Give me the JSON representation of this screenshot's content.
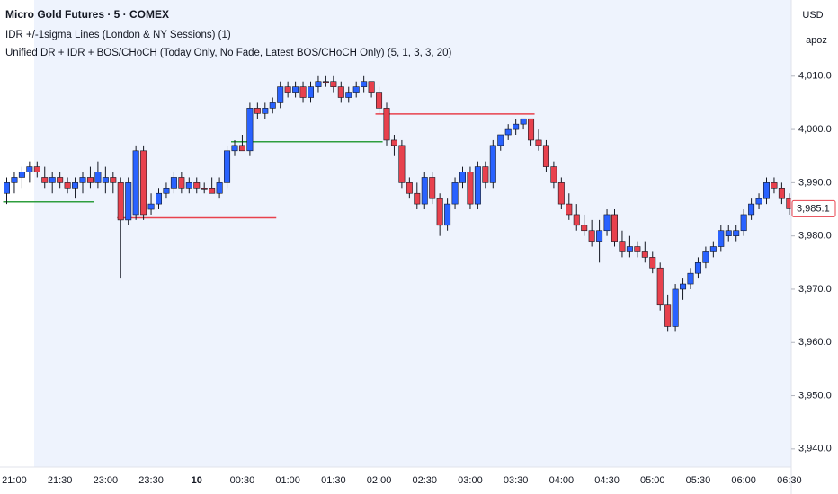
{
  "chart_data": {
    "type": "candlestick",
    "title": "Micro Gold Futures · 5 · COMEX",
    "indicators": [
      "IDR +/-1sigma Lines (London & NY Sessions) (1)",
      "Unified DR + IDR + BOS/CHoCH (Today Only, No Fade, Latest BOS/CHoCH Only) (5, 1, 3, 3, 20)"
    ],
    "currency": "USD",
    "scale_label": "apoz",
    "up_color": "#2962ff",
    "down_color": "#e8414d",
    "categories": [
      null,
      "21:00",
      null,
      null,
      null,
      null,
      null,
      "21:30",
      null,
      null,
      null,
      null,
      null,
      "23:00",
      null,
      null,
      null,
      null,
      null,
      "23:30",
      null,
      null,
      null,
      null,
      null,
      "10",
      null,
      null,
      null,
      null,
      null,
      "00:30",
      null,
      null,
      null,
      null,
      null,
      "01:00",
      null,
      null,
      null,
      null,
      null,
      "01:30",
      null,
      null,
      null,
      null,
      null,
      "02:00",
      null,
      null,
      null,
      null,
      null,
      "02:30",
      null,
      null,
      null,
      null,
      null,
      "03:00",
      null,
      null,
      null,
      null,
      null,
      "03:30",
      null,
      null,
      null,
      null,
      null,
      "04:00",
      null,
      null,
      null,
      null,
      null,
      "04:30",
      null,
      null,
      null,
      null,
      null,
      "05:00",
      null,
      null,
      null,
      null,
      null,
      "05:30",
      null,
      null,
      null,
      null,
      null,
      "06:00",
      null,
      null,
      null,
      null,
      null,
      "06:30"
    ],
    "open": [
      3988,
      3990,
      3991,
      3992,
      3993,
      3991,
      3990,
      3991,
      3990,
      3989,
      3990,
      3991,
      3990,
      3990,
      3991,
      3990,
      3983,
      3984,
      3996,
      3985,
      3986,
      3988,
      3989,
      3991,
      3989,
      3990,
      3989,
      3989,
      3988,
      3990,
      3996,
      3997,
      3996,
      4004,
      4003,
      4004,
      4005,
      4008,
      4007,
      4008,
      4006,
      4008,
      4009,
      4009,
      4008,
      4006,
      4007,
      4008,
      4009,
      4007,
      4004,
      3998,
      3997,
      3990,
      3988,
      3986,
      3991,
      3987,
      3982,
      3986,
      3990,
      3992,
      3986,
      3993,
      3990,
      3997,
      3999,
      4000,
      4001,
      4002,
      3998,
      3997,
      3993,
      3990,
      3986,
      3984,
      3982,
      3981,
      3979,
      3981,
      3984,
      3979,
      3977,
      3978,
      3977,
      3976,
      3974,
      3967,
      3963,
      3970,
      3971,
      3973,
      3975,
      3977,
      3978,
      3980,
      3980,
      3981,
      3984,
      3986,
      3987,
      3990,
      3989,
      3987
    ],
    "high": [
      3991,
      3992,
      3993,
      3994,
      3994,
      3993,
      3992,
      3992,
      3991,
      3991,
      3992,
      3993,
      3994,
      3993,
      3992,
      3991,
      3991,
      3997,
      3997,
      3988,
      3989,
      3990,
      3992,
      3992,
      3991,
      3991,
      3990,
      3991,
      3991,
      3997,
      3998,
      3999,
      4005,
      4005,
      4005,
      4006,
      4009,
      4009,
      4009,
      4009,
      4009,
      4010,
      4010,
      4010,
      4009,
      4008,
      4009,
      4010,
      4009,
      4008,
      4005,
      3999,
      3998,
      3991,
      3990,
      3992,
      3992,
      3988,
      3987,
      3991,
      3993,
      3993,
      3994,
      3994,
      3998,
      3999,
      4001,
      4002,
      4002,
      4002,
      4000,
      3998,
      3994,
      3991,
      3988,
      3986,
      3984,
      3983,
      3983,
      3985,
      3985,
      3981,
      3980,
      3979,
      3979,
      3977,
      3975,
      3969,
      3971,
      3972,
      3974,
      3976,
      3978,
      3979,
      3982,
      3982,
      3982,
      3985,
      3987,
      3988,
      3991,
      3991,
      3990,
      3988
    ],
    "low": [
      3986,
      3988,
      3989,
      3990,
      3991,
      3989,
      3988,
      3989,
      3988,
      3987,
      3988,
      3989,
      3989,
      3988,
      3988,
      3972,
      3982,
      3983,
      3983,
      3984,
      3985,
      3987,
      3988,
      3988,
      3988,
      3988,
      3988,
      3988,
      3987,
      3989,
      3995,
      3996,
      3995,
      4002,
      4002,
      4003,
      4004,
      4006,
      4006,
      4005,
      4005,
      4007,
      4008,
      4007,
      4005,
      4005,
      4006,
      4007,
      4006,
      4003,
      3997,
      3995,
      3989,
      3987,
      3985,
      3985,
      3986,
      3980,
      3981,
      3985,
      3989,
      3985,
      3985,
      3989,
      3989,
      3996,
      3998,
      3999,
      4000,
      3997,
      3996,
      3992,
      3989,
      3985,
      3983,
      3981,
      3980,
      3978,
      3975,
      3980,
      3978,
      3976,
      3976,
      3976,
      3975,
      3973,
      3966,
      3962,
      3962,
      3968,
      3970,
      3972,
      3974,
      3976,
      3977,
      3979,
      3979,
      3980,
      3983,
      3985,
      3986,
      3988,
      3986,
      3984
    ],
    "close": [
      3990,
      3991,
      3992,
      3993,
      3992,
      3990,
      3991,
      3990,
      3989,
      3990,
      3991,
      3990,
      3992,
      3991,
      3990,
      3983,
      3990,
      3996,
      3984,
      3986,
      3988,
      3989,
      3991,
      3989,
      3990,
      3989,
      3989,
      3988,
      3990,
      3996,
      3997,
      3996,
      4004,
      4003,
      4004,
      4005,
      4008,
      4007,
      4008,
      4006,
      4008,
      4009,
      4009,
      4008,
      4006,
      4007,
      4008,
      4009,
      4007,
      4004,
      3998,
      3997,
      3990,
      3988,
      3986,
      3991,
      3987,
      3982,
      3986,
      3990,
      3992,
      3986,
      3993,
      3990,
      3997,
      3999,
      4000,
      4001,
      4002,
      3998,
      3997,
      3993,
      3990,
      3986,
      3984,
      3982,
      3981,
      3979,
      3981,
      3984,
      3979,
      3977,
      3978,
      3977,
      3976,
      3974,
      3967,
      3963,
      3970,
      3971,
      3973,
      3975,
      3977,
      3978,
      3981,
      3981,
      3981,
      3984,
      3986,
      3987,
      3990,
      3989,
      3987,
      3985.1
    ],
    "levels": [
      {
        "value": 3986.4,
        "color": "#2e9e3e",
        "from": 0,
        "to": 11
      },
      {
        "value": 3983.4,
        "color": "#e8414d",
        "from": 15,
        "to": 35
      },
      {
        "value": 3997.7,
        "color": "#2e9e3e",
        "from": 30,
        "to": 49
      },
      {
        "value": 4002.9,
        "color": "#e8414d",
        "from": 49,
        "to": 69
      }
    ],
    "last_price": {
      "value": 3985.1,
      "label": "3,985.1"
    },
    "ylim": [
      3936.6,
      4024.3
    ],
    "yticks": [
      {
        "value": 4010,
        "label": "4,010.0"
      },
      {
        "value": 4000,
        "label": "4,000.0"
      },
      {
        "value": 3990,
        "label": "3,990.0"
      },
      {
        "value": 3980,
        "label": "3,980.0"
      },
      {
        "value": 3970,
        "label": "3,970.0"
      },
      {
        "value": 3960,
        "label": "3,960.0"
      },
      {
        "value": 3950,
        "label": "3,950.0"
      },
      {
        "value": 3940,
        "label": "3,940.0"
      }
    ]
  }
}
